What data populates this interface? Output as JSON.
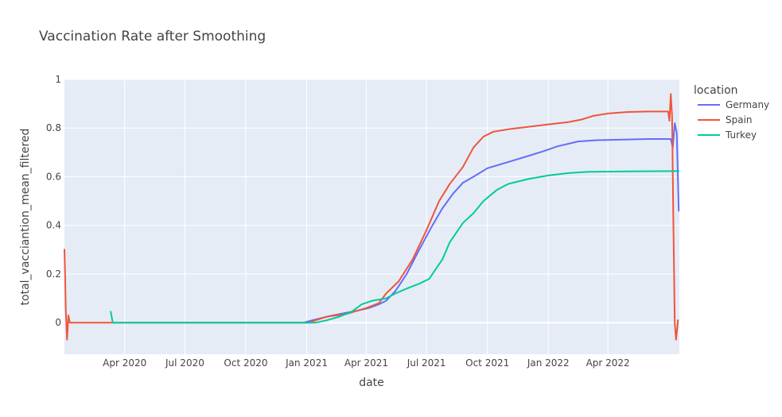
{
  "chart_data": {
    "type": "line",
    "title": "Vaccination Rate after Smoothing",
    "xlabel": "date",
    "ylabel": "total_vacciantion_mean_filtered",
    "legend_title": "location",
    "legend_position": "right",
    "grid": true,
    "xlim": [
      "2020-01-01",
      "2022-07-18"
    ],
    "ylim": [
      -0.13,
      1.0
    ],
    "x_ticks": [
      {
        "date": "2020-04-01",
        "label": "Apr 2020"
      },
      {
        "date": "2020-07-01",
        "label": "Jul 2020"
      },
      {
        "date": "2020-10-01",
        "label": "Oct 2020"
      },
      {
        "date": "2021-01-01",
        "label": "Jan 2021"
      },
      {
        "date": "2021-04-01",
        "label": "Apr 2021"
      },
      {
        "date": "2021-07-01",
        "label": "Jul 2021"
      },
      {
        "date": "2021-10-01",
        "label": "Oct 2021"
      },
      {
        "date": "2022-01-01",
        "label": "Jan 2022"
      },
      {
        "date": "2022-04-01",
        "label": "Apr 2022"
      }
    ],
    "y_ticks": [
      {
        "value": 0,
        "label": "0"
      },
      {
        "value": 0.2,
        "label": "0.2"
      },
      {
        "value": 0.4,
        "label": "0.4"
      },
      {
        "value": 0.6,
        "label": "0.6"
      },
      {
        "value": 0.8,
        "label": "0.8"
      },
      {
        "value": 1,
        "label": "1"
      }
    ],
    "series": [
      {
        "name": "Germany",
        "color": "#636efa",
        "points": [
          [
            "2020-12-27",
            0.0
          ],
          [
            "2021-01-10",
            0.01
          ],
          [
            "2021-01-25",
            0.02
          ],
          [
            "2021-02-10",
            0.03
          ],
          [
            "2021-03-01",
            0.04
          ],
          [
            "2021-03-20",
            0.05
          ],
          [
            "2021-04-05",
            0.06
          ],
          [
            "2021-04-20",
            0.075
          ],
          [
            "2021-05-01",
            0.09
          ],
          [
            "2021-05-15",
            0.13
          ],
          [
            "2021-06-01",
            0.2
          ],
          [
            "2021-06-20",
            0.3
          ],
          [
            "2021-07-10",
            0.4
          ],
          [
            "2021-07-25",
            0.47
          ],
          [
            "2021-08-10",
            0.53
          ],
          [
            "2021-08-25",
            0.575
          ],
          [
            "2021-09-10",
            0.6
          ],
          [
            "2021-10-01",
            0.635
          ],
          [
            "2021-11-01",
            0.66
          ],
          [
            "2021-12-01",
            0.685
          ],
          [
            "2021-12-25",
            0.705
          ],
          [
            "2022-01-15",
            0.725
          ],
          [
            "2022-02-15",
            0.745
          ],
          [
            "2022-03-15",
            0.75
          ],
          [
            "2022-05-01",
            0.753
          ],
          [
            "2022-06-01",
            0.755
          ],
          [
            "2022-07-05",
            0.755
          ],
          [
            "2022-07-08",
            0.72
          ],
          [
            "2022-07-11",
            0.82
          ],
          [
            "2022-07-14",
            0.78
          ],
          [
            "2022-07-17",
            0.46
          ]
        ]
      },
      {
        "name": "Spain",
        "color": "#ef553b",
        "points": [
          [
            "2020-01-01",
            0.3
          ],
          [
            "2020-01-02",
            0.2
          ],
          [
            "2020-01-03",
            0.05
          ],
          [
            "2020-01-05",
            -0.07
          ],
          [
            "2020-01-07",
            0.03
          ],
          [
            "2020-01-09",
            0.0
          ],
          [
            "2020-04-01",
            0.0
          ],
          [
            "2020-10-01",
            0.0
          ],
          [
            "2021-01-05",
            0.0
          ],
          [
            "2021-01-15",
            0.01
          ],
          [
            "2021-02-01",
            0.025
          ],
          [
            "2021-03-01",
            0.035
          ],
          [
            "2021-04-01",
            0.06
          ],
          [
            "2021-04-20",
            0.08
          ],
          [
            "2021-05-01",
            0.12
          ],
          [
            "2021-05-20",
            0.17
          ],
          [
            "2021-06-10",
            0.26
          ],
          [
            "2021-07-01",
            0.38
          ],
          [
            "2021-07-20",
            0.5
          ],
          [
            "2021-08-05",
            0.57
          ],
          [
            "2021-08-25",
            0.64
          ],
          [
            "2021-09-10",
            0.72
          ],
          [
            "2021-09-25",
            0.765
          ],
          [
            "2021-10-10",
            0.785
          ],
          [
            "2021-11-01",
            0.795
          ],
          [
            "2021-12-01",
            0.805
          ],
          [
            "2022-01-01",
            0.815
          ],
          [
            "2022-02-01",
            0.825
          ],
          [
            "2022-02-20",
            0.835
          ],
          [
            "2022-03-10",
            0.85
          ],
          [
            "2022-04-01",
            0.86
          ],
          [
            "2022-05-01",
            0.866
          ],
          [
            "2022-06-01",
            0.868
          ],
          [
            "2022-07-01",
            0.868
          ],
          [
            "2022-07-03",
            0.83
          ],
          [
            "2022-07-05",
            0.94
          ],
          [
            "2022-07-07",
            0.85
          ],
          [
            "2022-07-09",
            0.4
          ],
          [
            "2022-07-11",
            0.0
          ],
          [
            "2022-07-13",
            -0.07
          ],
          [
            "2022-07-16",
            0.01
          ]
        ]
      },
      {
        "name": "Turkey",
        "color": "#00cc96",
        "points": [
          [
            "2020-03-11",
            0.045
          ],
          [
            "2020-03-14",
            0.0
          ],
          [
            "2020-07-01",
            0.0
          ],
          [
            "2020-10-01",
            0.0
          ],
          [
            "2021-01-15",
            0.0
          ],
          [
            "2021-02-01",
            0.01
          ],
          [
            "2021-02-20",
            0.025
          ],
          [
            "2021-03-10",
            0.045
          ],
          [
            "2021-03-25",
            0.075
          ],
          [
            "2021-04-10",
            0.09
          ],
          [
            "2021-05-01",
            0.1
          ],
          [
            "2021-05-15",
            0.12
          ],
          [
            "2021-06-01",
            0.14
          ],
          [
            "2021-06-20",
            0.16
          ],
          [
            "2021-07-05",
            0.18
          ],
          [
            "2021-07-15",
            0.22
          ],
          [
            "2021-07-25",
            0.26
          ],
          [
            "2021-08-05",
            0.33
          ],
          [
            "2021-08-15",
            0.37
          ],
          [
            "2021-08-25",
            0.41
          ],
          [
            "2021-09-10",
            0.45
          ],
          [
            "2021-09-25",
            0.5
          ],
          [
            "2021-10-15",
            0.545
          ],
          [
            "2021-11-01",
            0.57
          ],
          [
            "2021-12-01",
            0.59
          ],
          [
            "2022-01-01",
            0.605
          ],
          [
            "2022-02-01",
            0.615
          ],
          [
            "2022-03-01",
            0.62
          ],
          [
            "2022-05-01",
            0.622
          ],
          [
            "2022-07-17",
            0.623
          ]
        ]
      }
    ]
  }
}
